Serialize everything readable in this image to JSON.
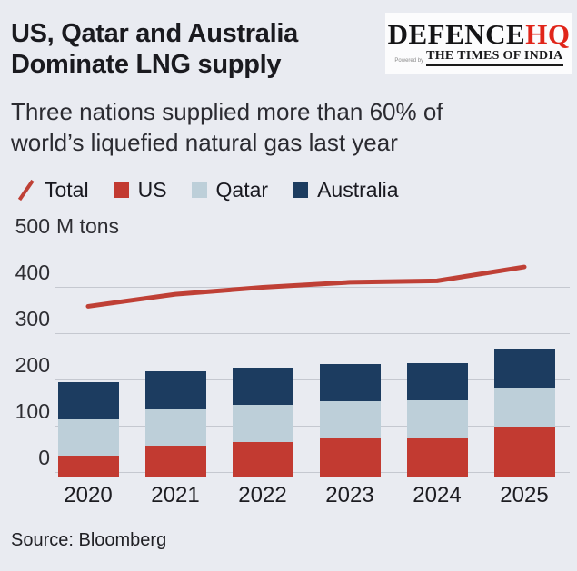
{
  "header": {
    "title_line1": "US, Qatar and Australia",
    "title_line2": "Dominate LNG supply",
    "subtitle_line1": "Three nations supplied more than 60% of",
    "subtitle_line2": "world’s liquefied natural gas last year"
  },
  "logo": {
    "brand_black": "DEFENCE",
    "brand_red": "HQ",
    "powered_by": "Powered by",
    "times_of_india": "THE TIMES OF INDIA"
  },
  "legend": [
    {
      "label": "Total",
      "marker": "line-slash",
      "color": "#bf4036"
    },
    {
      "label": "US",
      "marker": "square",
      "color": "#c23a31"
    },
    {
      "label": "Qatar",
      "marker": "square",
      "color": "#bdcfd9"
    },
    {
      "label": "Australia",
      "marker": "square",
      "color": "#1c3c60"
    }
  ],
  "axis": {
    "unit_label": "M tons",
    "y_ticks": [
      500,
      400,
      300,
      200,
      100,
      0
    ]
  },
  "chart_data": {
    "type": "combo (stacked bar + line)",
    "title": "US, Qatar and Australia Dominate LNG supply",
    "categories": [
      "2020",
      "2021",
      "2022",
      "2023",
      "2024",
      "2025"
    ],
    "series": [
      {
        "name": "US",
        "type": "bar",
        "color": "#c23a31",
        "values": [
          47,
          68,
          76,
          85,
          87,
          110
        ]
      },
      {
        "name": "Qatar",
        "type": "bar",
        "color": "#bdcfd9",
        "values": [
          79,
          80,
          80,
          79,
          80,
          84
        ]
      },
      {
        "name": "Australia",
        "type": "bar",
        "color": "#1c3c60",
        "values": [
          79,
          82,
          81,
          81,
          81,
          83
        ]
      },
      {
        "name": "Total",
        "type": "line",
        "color": "#bf4036",
        "values": [
          358,
          384,
          399,
          410,
          413,
          443
        ]
      }
    ],
    "ylabel": "M tons",
    "ylim": [
      0,
      500
    ],
    "grid": true,
    "legend_position": "top"
  },
  "source": "Source: Bloomberg",
  "colors": {
    "background": "#e9ebf1",
    "gridline": "#c5c8d0",
    "title_text": "#1a1a1f",
    "logo_red": "#e02419"
  }
}
